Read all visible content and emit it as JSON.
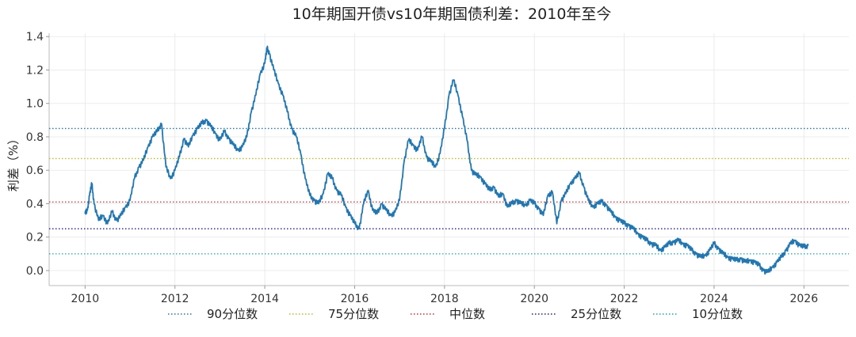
{
  "chart_data": {
    "type": "line",
    "title": "10年期国开债vs10年期国债利差：2010年至今",
    "ylabel": "利差（%）",
    "xlabel": "",
    "xlim": [
      2009.2,
      2027.0
    ],
    "ylim": [
      -0.09,
      1.42
    ],
    "x_ticks": [
      2010,
      2012,
      2014,
      2016,
      2018,
      2020,
      2022,
      2024,
      2026
    ],
    "y_ticks": [
      0.0,
      0.2,
      0.4,
      0.6,
      0.8,
      1.0,
      1.2,
      1.4
    ],
    "y_tick_labels": [
      "0.0",
      "0.2",
      "0.4",
      "0.6",
      "0.8",
      "1.0",
      "1.2",
      "1.4"
    ],
    "grid": true,
    "legend_position": "bottom",
    "series": [
      {
        "color": "#1f77b4",
        "x": [
          2010.0,
          2010.05,
          2010.1,
          2010.15,
          2010.2,
          2010.3,
          2010.4,
          2010.5,
          2010.6,
          2010.7,
          2010.8,
          2010.9,
          2011.0,
          2011.1,
          2011.2,
          2011.3,
          2011.4,
          2011.5,
          2011.6,
          2011.7,
          2011.8,
          2011.9,
          2012.0,
          2012.1,
          2012.2,
          2012.3,
          2012.4,
          2012.5,
          2012.6,
          2012.7,
          2012.8,
          2012.9,
          2013.0,
          2013.1,
          2013.2,
          2013.3,
          2013.4,
          2013.5,
          2013.6,
          2013.7,
          2013.8,
          2013.9,
          2014.0,
          2014.05,
          2014.1,
          2014.2,
          2014.3,
          2014.4,
          2014.5,
          2014.6,
          2014.7,
          2014.8,
          2014.9,
          2015.0,
          2015.1,
          2015.2,
          2015.3,
          2015.4,
          2015.5,
          2015.6,
          2015.7,
          2015.8,
          2015.9,
          2016.0,
          2016.1,
          2016.2,
          2016.3,
          2016.4,
          2016.5,
          2016.6,
          2016.7,
          2016.8,
          2016.9,
          2017.0,
          2017.1,
          2017.2,
          2017.3,
          2017.4,
          2017.5,
          2017.6,
          2017.7,
          2017.8,
          2017.9,
          2018.0,
          2018.1,
          2018.2,
          2018.3,
          2018.4,
          2018.5,
          2018.6,
          2018.7,
          2018.8,
          2018.9,
          2019.0,
          2019.1,
          2019.2,
          2019.3,
          2019.4,
          2019.5,
          2019.6,
          2019.7,
          2019.8,
          2019.9,
          2020.0,
          2020.1,
          2020.2,
          2020.3,
          2020.4,
          2020.5,
          2020.6,
          2020.7,
          2020.8,
          2020.9,
          2021.0,
          2021.1,
          2021.2,
          2021.3,
          2021.4,
          2021.5,
          2021.6,
          2021.7,
          2021.8,
          2021.9,
          2022.0,
          2022.1,
          2022.2,
          2022.3,
          2022.4,
          2022.5,
          2022.6,
          2022.7,
          2022.8,
          2022.9,
          2023.0,
          2023.1,
          2023.2,
          2023.3,
          2023.4,
          2023.5,
          2023.6,
          2023.7,
          2023.8,
          2023.9,
          2024.0,
          2024.1,
          2024.2,
          2024.3,
          2024.4,
          2024.5,
          2024.6,
          2024.7,
          2024.8,
          2024.9,
          2025.0,
          2025.1,
          2025.2,
          2025.3,
          2025.4,
          2025.5,
          2025.6,
          2025.7,
          2025.8,
          2025.9,
          2026.0,
          2026.1
        ],
        "values": [
          0.34,
          0.36,
          0.45,
          0.52,
          0.4,
          0.3,
          0.33,
          0.28,
          0.35,
          0.3,
          0.33,
          0.38,
          0.42,
          0.55,
          0.62,
          0.66,
          0.74,
          0.8,
          0.83,
          0.88,
          0.62,
          0.55,
          0.6,
          0.68,
          0.79,
          0.74,
          0.81,
          0.85,
          0.88,
          0.9,
          0.86,
          0.82,
          0.78,
          0.83,
          0.79,
          0.75,
          0.72,
          0.74,
          0.8,
          0.95,
          1.05,
          1.18,
          1.24,
          1.33,
          1.3,
          1.2,
          1.12,
          1.05,
          0.95,
          0.85,
          0.8,
          0.7,
          0.55,
          0.45,
          0.42,
          0.4,
          0.46,
          0.58,
          0.55,
          0.48,
          0.45,
          0.38,
          0.33,
          0.28,
          0.25,
          0.4,
          0.48,
          0.36,
          0.34,
          0.4,
          0.36,
          0.33,
          0.35,
          0.42,
          0.65,
          0.78,
          0.75,
          0.72,
          0.8,
          0.68,
          0.65,
          0.62,
          0.7,
          0.85,
          1.05,
          1.14,
          1.05,
          0.92,
          0.78,
          0.6,
          0.57,
          0.56,
          0.52,
          0.48,
          0.5,
          0.44,
          0.46,
          0.38,
          0.4,
          0.42,
          0.4,
          0.39,
          0.42,
          0.4,
          0.37,
          0.33,
          0.45,
          0.47,
          0.28,
          0.42,
          0.46,
          0.52,
          0.55,
          0.58,
          0.5,
          0.42,
          0.38,
          0.4,
          0.41,
          0.39,
          0.35,
          0.32,
          0.3,
          0.28,
          0.27,
          0.25,
          0.22,
          0.2,
          0.18,
          0.16,
          0.15,
          0.12,
          0.14,
          0.16,
          0.17,
          0.18,
          0.16,
          0.15,
          0.12,
          0.1,
          0.08,
          0.09,
          0.12,
          0.16,
          0.13,
          0.1,
          0.08,
          0.07,
          0.06,
          0.07,
          0.05,
          0.06,
          0.05,
          0.03,
          0.0,
          -0.01,
          0.02,
          0.05,
          0.08,
          0.12,
          0.16,
          0.18,
          0.15,
          0.14,
          0.15
        ]
      }
    ],
    "reference_lines": [
      {
        "name": "90分位数",
        "value": 0.85,
        "color": "#1f77b4"
      },
      {
        "name": "75分位数",
        "value": 0.67,
        "color": "#bcbd22"
      },
      {
        "name": "中位数",
        "value": 0.41,
        "color": "#d62728"
      },
      {
        "name": "25分位数",
        "value": 0.25,
        "color": "#1a1aa0"
      },
      {
        "name": "10分位数",
        "value": 0.1,
        "color": "#17a2b8"
      }
    ]
  }
}
